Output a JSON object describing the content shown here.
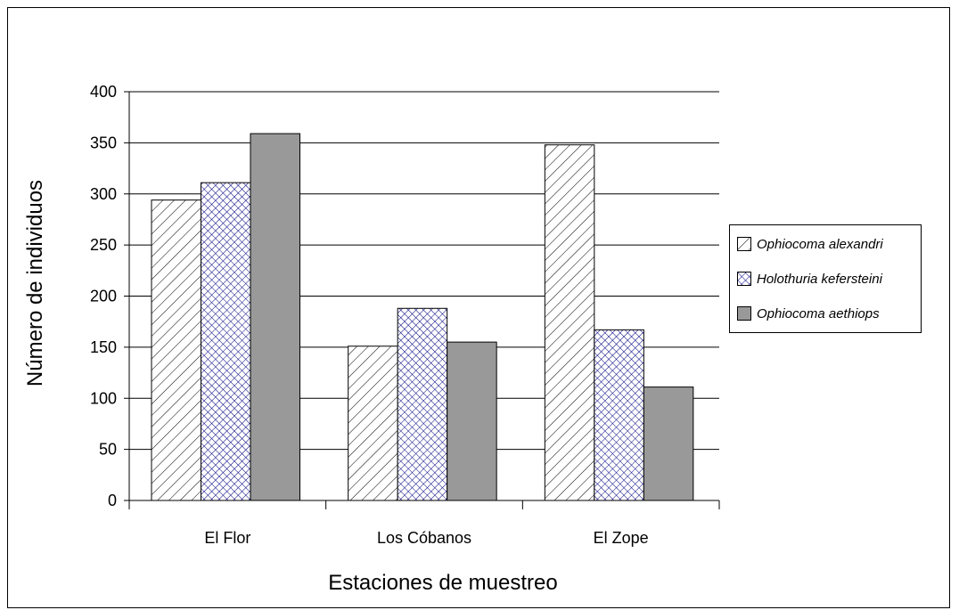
{
  "chart_data": {
    "type": "bar",
    "title": "",
    "xlabel": "Estaciones de muestreo",
    "ylabel": "Número de individuos",
    "categories": [
      "El Flor",
      "Los Cóbanos",
      "El Zope"
    ],
    "ylim": [
      0,
      400
    ],
    "yticks": [
      0,
      50,
      100,
      150,
      200,
      250,
      300,
      350,
      400
    ],
    "ytick_labels": [
      "0",
      "50",
      "100",
      "150",
      "200",
      "250",
      "300",
      "350",
      "400"
    ],
    "grid": "horizontal",
    "legend_position": "right",
    "series": [
      {
        "name": "Ophiocoma alexandri",
        "values": [
          294,
          151,
          348
        ],
        "pattern": "diagonal-hatch",
        "color": "#000000"
      },
      {
        "name": "Holothuria kefersteini",
        "values": [
          311,
          188,
          167
        ],
        "pattern": "crosshatch",
        "color": "#000080"
      },
      {
        "name": "Ophiocoma aethiops",
        "values": [
          359,
          155,
          111
        ],
        "pattern": "solid",
        "color": "#999999"
      }
    ]
  }
}
